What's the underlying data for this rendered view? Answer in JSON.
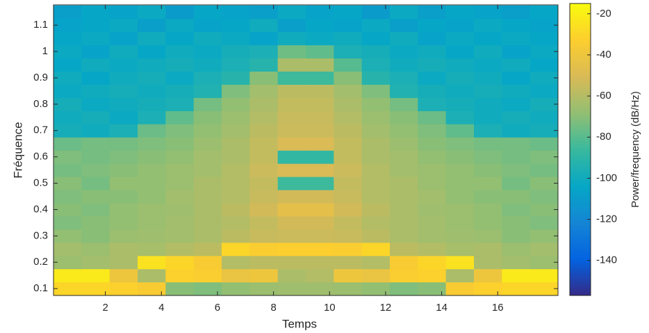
{
  "chart_data": {
    "type": "heatmap",
    "x_label": "Temps",
    "y_label": "Fréquence",
    "colorbar_label": "Power/frequency (dB/Hz)",
    "x": [
      0.65,
      1.65,
      2.65,
      3.65,
      4.65,
      5.65,
      6.65,
      7.65,
      8.65,
      9.65,
      10.65,
      11.65,
      12.65,
      13.65,
      14.65,
      15.65,
      16.65,
      17.65
    ],
    "y": [
      0.1,
      0.15,
      0.2,
      0.25,
      0.3,
      0.35,
      0.4,
      0.45,
      0.5,
      0.55,
      0.6,
      0.65,
      0.7,
      0.75,
      0.8,
      0.85,
      0.9,
      0.95,
      1.0,
      1.05,
      1.1,
      1.15
    ],
    "z": [
      [
        -30,
        -30,
        -32,
        -35,
        -70,
        -72,
        -68,
        -66,
        -65,
        -65,
        -66,
        -68,
        -72,
        -70,
        -35,
        -32,
        -30,
        -30
      ],
      [
        -22,
        -22,
        -40,
        -62,
        -32,
        -34,
        -42,
        -40,
        -62,
        -60,
        -40,
        -42,
        -34,
        -32,
        -62,
        -40,
        -22,
        -22
      ],
      [
        -66,
        -64,
        -62,
        -25,
        -30,
        -35,
        -60,
        -58,
        -58,
        -58,
        -58,
        -60,
        -35,
        -30,
        -25,
        -62,
        -64,
        -66
      ],
      [
        -64,
        -66,
        -62,
        -63,
        -60,
        -58,
        -30,
        -34,
        -33,
        -33,
        -34,
        -30,
        -58,
        -60,
        -63,
        -62,
        -66,
        -64
      ],
      [
        -68,
        -70,
        -66,
        -65,
        -64,
        -62,
        -58,
        -55,
        -54,
        -54,
        -55,
        -58,
        -62,
        -64,
        -65,
        -66,
        -70,
        -68
      ],
      [
        -72,
        -70,
        -68,
        -66,
        -64,
        -62,
        -60,
        -56,
        -52,
        -52,
        -56,
        -60,
        -62,
        -64,
        -66,
        -68,
        -70,
        -72
      ],
      [
        -70,
        -72,
        -68,
        -66,
        -65,
        -62,
        -58,
        -52,
        -45,
        -45,
        -52,
        -58,
        -62,
        -65,
        -66,
        -68,
        -72,
        -70
      ],
      [
        -72,
        -70,
        -70,
        -68,
        -64,
        -62,
        -60,
        -55,
        -52,
        -52,
        -55,
        -60,
        -62,
        -64,
        -68,
        -70,
        -70,
        -72
      ],
      [
        -70,
        -74,
        -68,
        -68,
        -66,
        -62,
        -60,
        -56,
        -85,
        -85,
        -56,
        -60,
        -62,
        -66,
        -68,
        -68,
        -74,
        -70
      ],
      [
        -74,
        -72,
        -70,
        -68,
        -66,
        -64,
        -60,
        -54,
        -50,
        -50,
        -54,
        -60,
        -64,
        -66,
        -68,
        -70,
        -72,
        -74
      ],
      [
        -72,
        -74,
        -72,
        -70,
        -68,
        -64,
        -62,
        -56,
        -88,
        -88,
        -56,
        -62,
        -64,
        -68,
        -70,
        -72,
        -74,
        -72
      ],
      [
        -76,
        -74,
        -74,
        -72,
        -70,
        -66,
        -62,
        -56,
        -50,
        -50,
        -56,
        -62,
        -66,
        -70,
        -72,
        -74,
        -74,
        -76
      ],
      [
        -98,
        -100,
        -96,
        -76,
        -72,
        -68,
        -64,
        -58,
        -54,
        -54,
        -58,
        -64,
        -68,
        -72,
        -78,
        -96,
        -100,
        -98
      ],
      [
        -100,
        -98,
        -102,
        -96,
        -78,
        -70,
        -66,
        -60,
        -55,
        -55,
        -60,
        -66,
        -70,
        -76,
        -96,
        -100,
        -98,
        -100
      ],
      [
        -98,
        -102,
        -100,
        -98,
        -96,
        -74,
        -68,
        -62,
        -56,
        -56,
        -62,
        -68,
        -74,
        -96,
        -98,
        -100,
        -102,
        -98
      ],
      [
        -102,
        -100,
        -98,
        -100,
        -98,
        -94,
        -72,
        -64,
        -58,
        -58,
        -64,
        -72,
        -94,
        -98,
        -100,
        -98,
        -100,
        -102
      ],
      [
        -100,
        -104,
        -100,
        -98,
        -102,
        -96,
        -92,
        -70,
        -85,
        -85,
        -70,
        -92,
        -96,
        -102,
        -98,
        -100,
        -104,
        -100
      ],
      [
        -104,
        -100,
        -102,
        -100,
        -98,
        -100,
        -96,
        -92,
        -62,
        -62,
        -80,
        -96,
        -100,
        -98,
        -100,
        -102,
        -100,
        -104
      ],
      [
        -102,
        -106,
        -100,
        -104,
        -100,
        -102,
        -98,
        -96,
        -75,
        -78,
        -96,
        -98,
        -102,
        -100,
        -104,
        -100,
        -106,
        -102
      ],
      [
        -104,
        -102,
        -106,
        -100,
        -104,
        -100,
        -102,
        -106,
        -100,
        -102,
        -100,
        -104,
        -100,
        -106,
        -102,
        -104,
        -102,
        -104
      ],
      [
        -106,
        -104,
        -102,
        -108,
        -102,
        -106,
        -104,
        -100,
        -108,
        -104,
        -106,
        -102,
        -108,
        -104,
        -106,
        -102,
        -104,
        -106
      ],
      [
        -108,
        -104,
        -106,
        -102,
        -110,
        -104,
        -106,
        -108,
        -102,
        -106,
        -104,
        -110,
        -102,
        -108,
        -104,
        -106,
        -108,
        -104
      ]
    ],
    "xlim": [
      0.15,
      18.15
    ],
    "ylim": [
      0.074,
      1.177
    ],
    "xticks": [
      2,
      4,
      6,
      8,
      10,
      12,
      14,
      16
    ],
    "yticks": [
      0.1,
      0.2,
      0.3,
      0.4,
      0.5,
      0.6,
      0.7,
      0.8,
      0.9,
      1,
      1.1
    ],
    "clim": [
      -157,
      -15
    ],
    "cticks": [
      -20,
      -40,
      -60,
      -80,
      -100,
      -120,
      -140
    ],
    "colormap": [
      "#352a87",
      "#0363e1",
      "#1485d4",
      "#06a7c6",
      "#38b99e",
      "#92bf73",
      "#d9ba56",
      "#fcce2e",
      "#f9fb0e"
    ]
  }
}
